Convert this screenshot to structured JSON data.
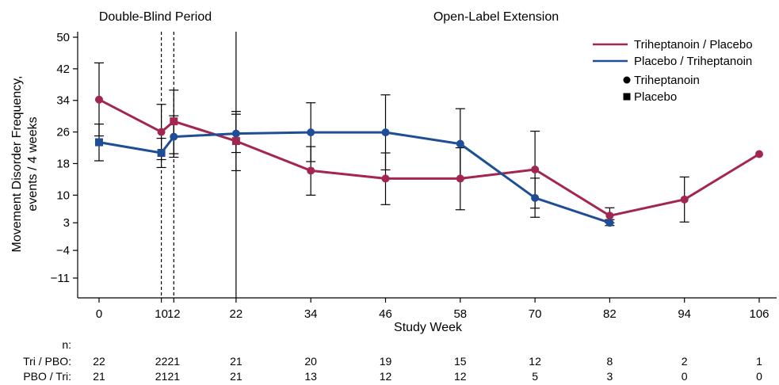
{
  "chart_data": {
    "type": "line",
    "xlabel": "Study Week",
    "ylabel_line1": "Movement Disorder Frequency,",
    "ylabel_line2": "events / 4 weeks",
    "x_ticks": [
      0,
      10,
      12,
      22,
      34,
      46,
      58,
      70,
      82,
      94,
      106
    ],
    "y_ticks": [
      50,
      42,
      34,
      26,
      18,
      10,
      3,
      -4,
      -11
    ],
    "y_tick_labels": [
      "50",
      "42",
      "34",
      "26",
      "18",
      "10",
      "3",
      "−4",
      "−11"
    ],
    "xlim": [
      -3,
      109
    ],
    "ylim": [
      -17,
      52
    ],
    "period_labels": {
      "double_blind": "Double-Blind Period",
      "open_label": "Open-Label Extension"
    },
    "period_lines": [
      {
        "x": 10,
        "style": "dashed"
      },
      {
        "x": 12,
        "style": "dashed"
      },
      {
        "x": 22,
        "style": "solid"
      }
    ],
    "series": [
      {
        "name": "Triheptanoin / Placebo",
        "color": "#a3264e",
        "points": [
          {
            "x": 0,
            "y": 34.2,
            "lo": 25.0,
            "hi": 43.5,
            "marker": "circle"
          },
          {
            "x": 10,
            "y": 26.0,
            "lo": 19.0,
            "hi": 33.0,
            "marker": "circle"
          },
          {
            "x": 12,
            "y": 28.7,
            "lo": 20.5,
            "hi": 36.6,
            "marker": "square"
          },
          {
            "x": 22,
            "y": 23.7,
            "lo": 16.2,
            "hi": 31.2,
            "marker": "square"
          },
          {
            "x": 34,
            "y": 16.2,
            "lo": 10.0,
            "hi": 22.3,
            "marker": "circle"
          },
          {
            "x": 46,
            "y": 14.2,
            "lo": 7.6,
            "hi": 20.7,
            "marker": "circle"
          },
          {
            "x": 58,
            "y": 14.2,
            "lo": 6.3,
            "hi": 22.0,
            "marker": "circle"
          },
          {
            "x": 70,
            "y": 16.5,
            "lo": 6.7,
            "hi": 26.2,
            "marker": "circle"
          },
          {
            "x": 82,
            "y": 4.8,
            "lo": 3.0,
            "hi": 6.8,
            "marker": "circle"
          },
          {
            "x": 94,
            "y": 8.9,
            "lo": 3.2,
            "hi": 14.6,
            "marker": "circle"
          },
          {
            "x": 106,
            "y": 20.4,
            "lo": null,
            "hi": null,
            "marker": "circle"
          }
        ]
      },
      {
        "name": "Placebo / Triheptanoin",
        "color": "#1f4e96",
        "points": [
          {
            "x": 0,
            "y": 23.4,
            "lo": 18.7,
            "hi": 28.0,
            "marker": "square"
          },
          {
            "x": 10,
            "y": 20.7,
            "lo": 17.0,
            "hi": 24.4,
            "marker": "square"
          },
          {
            "x": 12,
            "y": 24.8,
            "lo": 19.6,
            "hi": 30.1,
            "marker": "circle"
          },
          {
            "x": 22,
            "y": 25.6,
            "lo": 20.8,
            "hi": 30.5,
            "marker": "circle"
          },
          {
            "x": 34,
            "y": 25.9,
            "lo": 18.5,
            "hi": 33.4,
            "marker": "circle"
          },
          {
            "x": 46,
            "y": 25.9,
            "lo": 16.4,
            "hi": 35.4,
            "marker": "circle"
          },
          {
            "x": 58,
            "y": 23.0,
            "lo": 14.1,
            "hi": 31.9,
            "marker": "circle"
          },
          {
            "x": 70,
            "y": 9.3,
            "lo": 4.4,
            "hi": 14.3,
            "marker": "circle"
          },
          {
            "x": 82,
            "y": 3.0,
            "lo": 2.3,
            "hi": 3.8,
            "marker": "circle"
          }
        ]
      }
    ],
    "legend": {
      "position": "top-right",
      "line_entries": [
        {
          "label": "Triheptanoin / Placebo",
          "color": "#a3264e"
        },
        {
          "label": "Placebo / Triheptanoin",
          "color": "#1f4e96"
        }
      ],
      "marker_entries": [
        {
          "label": "Triheptanoin",
          "marker": "circle"
        },
        {
          "label": "Placebo",
          "marker": "square"
        }
      ]
    },
    "n_table": {
      "header": "n:",
      "rows": [
        {
          "label": "Tri / PBO:",
          "values": [
            "22",
            "22",
            "21",
            "21",
            "20",
            "19",
            "15",
            "12",
            "8",
            "2",
            "1"
          ]
        },
        {
          "label": "PBO / Tri:",
          "values": [
            "21",
            "21",
            "21",
            "21",
            "13",
            "12",
            "12",
            "5",
            "3",
            "0",
            "0"
          ]
        }
      ]
    }
  }
}
